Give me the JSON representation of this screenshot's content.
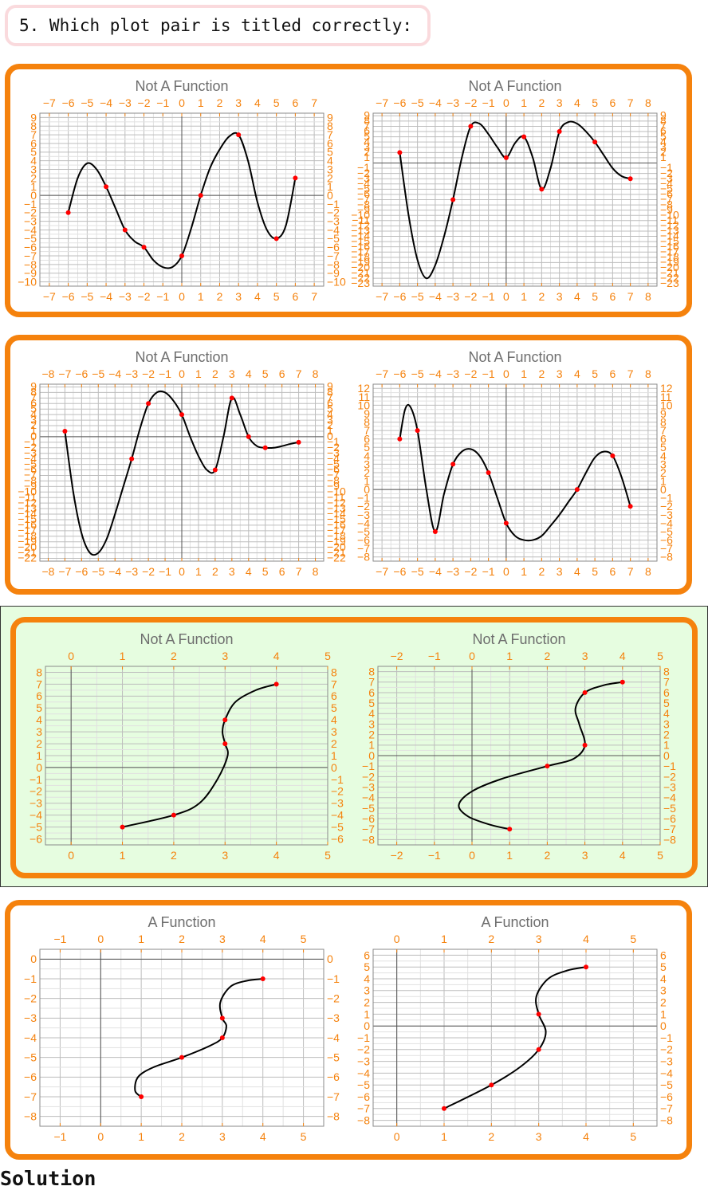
{
  "question": "5. Which plot pair is titled correctly:",
  "solution_label": "Solution",
  "colors": {
    "accent": "#f5820d",
    "highlight": "#e6fde0",
    "curve": "#000000",
    "point": "#ff0000",
    "title": "#6e6e6e",
    "grid": "#c8c8c8"
  },
  "options": [
    {
      "id": "pair-1",
      "highlighted": false
    },
    {
      "id": "pair-2",
      "highlighted": false
    },
    {
      "id": "pair-3",
      "highlighted": true
    },
    {
      "id": "pair-4",
      "highlighted": false
    }
  ],
  "chart_data": [
    {
      "type": "line",
      "title": "Not A Function",
      "xlim": [
        -7.5,
        7.5
      ],
      "ylim": [
        -10.5,
        9.5
      ],
      "xticks": [
        -7,
        -6,
        -5,
        -4,
        -3,
        -2,
        -1,
        0,
        1,
        2,
        3,
        4,
        5,
        6,
        7
      ],
      "yticks": [
        -10,
        -9,
        -8,
        -7,
        -6,
        -5,
        -4,
        -3,
        -2,
        -1,
        0,
        1,
        2,
        3,
        4,
        5,
        6,
        7,
        8,
        9
      ],
      "points": [
        [
          -6,
          -2
        ],
        [
          -4,
          1
        ],
        [
          -3,
          -4
        ],
        [
          -2,
          -6
        ],
        [
          0,
          -7
        ],
        [
          1,
          0
        ],
        [
          3,
          7
        ],
        [
          5,
          -5
        ],
        [
          6,
          2
        ]
      ],
      "curve": [
        [
          -6,
          -2
        ],
        [
          -5.5,
          2
        ],
        [
          -5,
          3.7
        ],
        [
          -4.5,
          3
        ],
        [
          -4,
          1
        ],
        [
          -3.5,
          -1.5
        ],
        [
          -3,
          -4
        ],
        [
          -2.5,
          -5.3
        ],
        [
          -2,
          -6
        ],
        [
          -1.5,
          -7.5
        ],
        [
          -1,
          -8.3
        ],
        [
          -0.5,
          -8.3
        ],
        [
          0,
          -7
        ],
        [
          0.5,
          -3.8
        ],
        [
          1,
          0
        ],
        [
          1.5,
          3.2
        ],
        [
          2,
          5.3
        ],
        [
          2.5,
          6.8
        ],
        [
          3,
          7
        ],
        [
          3.5,
          4
        ],
        [
          4,
          -0.8
        ],
        [
          4.5,
          -4
        ],
        [
          5,
          -5
        ],
        [
          5.5,
          -3.5
        ],
        [
          6,
          2
        ]
      ]
    },
    {
      "type": "line",
      "title": "Not A Function",
      "xlim": [
        -7.5,
        8.5
      ],
      "ylim": [
        -23.5,
        9.5
      ],
      "xticks": [
        -7,
        -6,
        -5,
        -4,
        -3,
        -2,
        -1,
        0,
        1,
        2,
        3,
        4,
        5,
        6,
        7,
        8
      ],
      "yticks": [
        -23,
        -22,
        -21,
        -20,
        -19,
        -18,
        -17,
        -16,
        -15,
        -14,
        -13,
        -12,
        -11,
        -10,
        -9,
        -8,
        -7,
        -6,
        -5,
        -4,
        -3,
        -2,
        -1,
        1,
        2,
        3,
        4,
        5,
        6,
        7,
        8,
        9
      ],
      "points": [
        [
          -6,
          2
        ],
        [
          -3,
          -7
        ],
        [
          -2,
          7
        ],
        [
          0,
          1
        ],
        [
          1,
          5
        ],
        [
          2,
          -5
        ],
        [
          3,
          6
        ],
        [
          5,
          4
        ],
        [
          7,
          -3
        ]
      ],
      "curve": [
        [
          -6,
          2
        ],
        [
          -5.5,
          -10
        ],
        [
          -5,
          -18.5
        ],
        [
          -4.5,
          -22
        ],
        [
          -4,
          -19.5
        ],
        [
          -3.5,
          -14
        ],
        [
          -3,
          -7
        ],
        [
          -2.5,
          1
        ],
        [
          -2,
          7
        ],
        [
          -1.5,
          7.5
        ],
        [
          -1,
          5.5
        ],
        [
          -0.5,
          3
        ],
        [
          0,
          1
        ],
        [
          0.5,
          3.8
        ],
        [
          1,
          5
        ],
        [
          1.5,
          1
        ],
        [
          2,
          -5
        ],
        [
          2.5,
          -1
        ],
        [
          3,
          6
        ],
        [
          3.5,
          7.8
        ],
        [
          4,
          7.5
        ],
        [
          4.5,
          6
        ],
        [
          5,
          4
        ],
        [
          5.5,
          1.5
        ],
        [
          6,
          -1
        ],
        [
          6.5,
          -2.5
        ],
        [
          7,
          -3
        ]
      ]
    },
    {
      "type": "line",
      "title": "Not A Function",
      "xlim": [
        -8.5,
        8.5
      ],
      "ylim": [
        -22.5,
        9.5
      ],
      "xticks": [
        -8,
        -7,
        -6,
        -5,
        -4,
        -3,
        -2,
        -1,
        0,
        1,
        2,
        3,
        4,
        5,
        6,
        7,
        8
      ],
      "yticks": [
        -22,
        -21,
        -20,
        -19,
        -18,
        -17,
        -16,
        -15,
        -14,
        -13,
        -12,
        -11,
        -10,
        -9,
        -8,
        -7,
        -6,
        -5,
        -4,
        -3,
        -2,
        -1,
        0,
        1,
        2,
        3,
        4,
        5,
        6,
        7,
        8,
        9
      ],
      "points": [
        [
          -7,
          1
        ],
        [
          -3,
          -4
        ],
        [
          -2,
          6
        ],
        [
          0,
          4
        ],
        [
          2,
          -6
        ],
        [
          3,
          7
        ],
        [
          4,
          0
        ],
        [
          5,
          -2
        ],
        [
          7,
          -1
        ]
      ],
      "curve": [
        [
          -7,
          1
        ],
        [
          -6.5,
          -10
        ],
        [
          -6,
          -17.5
        ],
        [
          -5.5,
          -21
        ],
        [
          -5,
          -21
        ],
        [
          -4.5,
          -18.5
        ],
        [
          -4,
          -14
        ],
        [
          -3.5,
          -9
        ],
        [
          -3,
          -4
        ],
        [
          -2.5,
          1.5
        ],
        [
          -2,
          6
        ],
        [
          -1.5,
          8
        ],
        [
          -1,
          8
        ],
        [
          -0.5,
          6.5
        ],
        [
          0,
          4
        ],
        [
          0.5,
          0
        ],
        [
          1,
          -3.5
        ],
        [
          1.5,
          -6
        ],
        [
          2,
          -6
        ],
        [
          2.5,
          0
        ],
        [
          3,
          7
        ],
        [
          3.5,
          4
        ],
        [
          4,
          0
        ],
        [
          4.5,
          -1.7
        ],
        [
          5,
          -2
        ],
        [
          5.5,
          -2
        ],
        [
          6,
          -1.7
        ],
        [
          6.5,
          -1.3
        ],
        [
          7,
          -1
        ]
      ]
    },
    {
      "type": "line",
      "title": "Not A Function",
      "xlim": [
        -7.5,
        8.5
      ],
      "ylim": [
        -8.5,
        12.5
      ],
      "xticks": [
        -7,
        -6,
        -5,
        -4,
        -3,
        -2,
        -1,
        0,
        1,
        2,
        3,
        4,
        5,
        6,
        7,
        8
      ],
      "yticks": [
        -8,
        -7,
        -6,
        -5,
        -4,
        -3,
        -2,
        -1,
        0,
        1,
        2,
        3,
        4,
        5,
        6,
        7,
        8,
        9,
        10,
        11,
        12
      ],
      "points": [
        [
          -6,
          6
        ],
        [
          -5,
          7
        ],
        [
          -4,
          -5
        ],
        [
          -3,
          3
        ],
        [
          -1,
          2
        ],
        [
          0,
          -4
        ],
        [
          4,
          0
        ],
        [
          6,
          4
        ],
        [
          7,
          -2
        ]
      ],
      "curve": [
        [
          -6,
          6
        ],
        [
          -5.7,
          9.5
        ],
        [
          -5.4,
          9.8
        ],
        [
          -5,
          7
        ],
        [
          -4.5,
          0
        ],
        [
          -4,
          -5
        ],
        [
          -3.5,
          -0.5
        ],
        [
          -3,
          3
        ],
        [
          -2.5,
          4.5
        ],
        [
          -2,
          4.8
        ],
        [
          -1.5,
          4
        ],
        [
          -1,
          2
        ],
        [
          -0.5,
          -1
        ],
        [
          0,
          -4
        ],
        [
          0.5,
          -5.5
        ],
        [
          1,
          -6
        ],
        [
          1.5,
          -6
        ],
        [
          2,
          -5.5
        ],
        [
          2.5,
          -4.3
        ],
        [
          3,
          -3
        ],
        [
          3.5,
          -1.5
        ],
        [
          4,
          0
        ],
        [
          4.5,
          2
        ],
        [
          5,
          3.8
        ],
        [
          5.5,
          4.5
        ],
        [
          6,
          4
        ],
        [
          6.5,
          1.5
        ],
        [
          7,
          -2
        ]
      ]
    },
    {
      "type": "line",
      "title": "Not A Function",
      "xlim": [
        -0.5,
        5.0
      ],
      "ylim": [
        -6.5,
        8.5
      ],
      "xticks": [
        0,
        1,
        2,
        3,
        4,
        5
      ],
      "yticks": [
        -6,
        -5,
        -4,
        -3,
        -2,
        -1,
        0,
        1,
        2,
        3,
        4,
        5,
        6,
        7,
        8
      ],
      "points": [
        [
          1,
          -5
        ],
        [
          2,
          -4
        ],
        [
          3,
          2
        ],
        [
          3,
          4
        ],
        [
          4,
          7
        ]
      ],
      "curve": [
        [
          1,
          -5
        ],
        [
          2,
          -4
        ],
        [
          2.5,
          -3
        ],
        [
          2.85,
          -1
        ],
        [
          3.05,
          1
        ],
        [
          3,
          2
        ],
        [
          2.95,
          3
        ],
        [
          3,
          4
        ],
        [
          3.2,
          5.5
        ],
        [
          3.6,
          6.5
        ],
        [
          4,
          7
        ]
      ]
    },
    {
      "type": "line",
      "title": "Not A Function",
      "xlim": [
        -2.5,
        5.0
      ],
      "ylim": [
        -8.5,
        8.5
      ],
      "xticks": [
        -2,
        -1,
        0,
        1,
        2,
        3,
        4,
        5
      ],
      "yticks": [
        -8,
        -7,
        -6,
        -5,
        -4,
        -3,
        -2,
        -1,
        0,
        1,
        2,
        3,
        4,
        5,
        6,
        7,
        8
      ],
      "points": [
        [
          1,
          -7
        ],
        [
          2,
          -1
        ],
        [
          3,
          1
        ],
        [
          3,
          6
        ],
        [
          4,
          7
        ]
      ],
      "curve": [
        [
          1,
          -7
        ],
        [
          0.5,
          -6.6
        ],
        [
          -0.1,
          -5.8
        ],
        [
          -0.35,
          -4.7
        ],
        [
          0,
          -3.4
        ],
        [
          0.8,
          -2.2
        ],
        [
          2,
          -1
        ],
        [
          2.7,
          -0.3
        ],
        [
          3,
          1
        ],
        [
          2.85,
          3
        ],
        [
          2.75,
          4.5
        ],
        [
          3,
          6
        ],
        [
          3.5,
          6.7
        ],
        [
          4,
          7
        ]
      ]
    },
    {
      "type": "line",
      "title": "A Function",
      "xlim": [
        -1.5,
        5.5
      ],
      "ylim": [
        -8.5,
        0.5
      ],
      "xticks": [
        -1,
        0,
        1,
        2,
        3,
        4,
        5
      ],
      "yticks": [
        -8,
        -7,
        -6,
        -5,
        -4,
        -3,
        -2,
        -1,
        0
      ],
      "points": [
        [
          1,
          -7
        ],
        [
          2,
          -5
        ],
        [
          3,
          -4
        ],
        [
          3,
          -3
        ],
        [
          4,
          -1
        ]
      ],
      "curve": [
        [
          1,
          -7
        ],
        [
          0.85,
          -6.7
        ],
        [
          0.92,
          -6
        ],
        [
          1.3,
          -5.5
        ],
        [
          2,
          -5
        ],
        [
          2.7,
          -4.4
        ],
        [
          3,
          -4
        ],
        [
          3.1,
          -3.4
        ],
        [
          3,
          -3
        ],
        [
          2.95,
          -2.2
        ],
        [
          3.2,
          -1.4
        ],
        [
          3.6,
          -1.1
        ],
        [
          4,
          -1
        ]
      ]
    },
    {
      "type": "line",
      "title": "A Function",
      "xlim": [
        -0.5,
        5.5
      ],
      "ylim": [
        -8.5,
        6.5
      ],
      "xticks": [
        0,
        1,
        2,
        3,
        4,
        5
      ],
      "yticks": [
        -8,
        -7,
        -6,
        -5,
        -4,
        -3,
        -2,
        -1,
        0,
        1,
        2,
        3,
        4,
        5,
        6
      ],
      "points": [
        [
          1,
          -7
        ],
        [
          2,
          -5
        ],
        [
          3,
          -2
        ],
        [
          3,
          1
        ],
        [
          4,
          5
        ]
      ],
      "curve": [
        [
          1,
          -7
        ],
        [
          2,
          -5
        ],
        [
          2.6,
          -3.5
        ],
        [
          3,
          -2
        ],
        [
          3.15,
          -0.5
        ],
        [
          3,
          1
        ],
        [
          2.95,
          2.5
        ],
        [
          3.2,
          4
        ],
        [
          3.6,
          4.7
        ],
        [
          4,
          5
        ]
      ]
    }
  ]
}
